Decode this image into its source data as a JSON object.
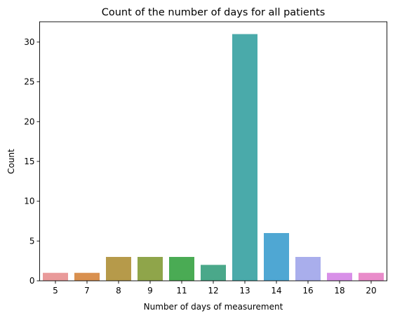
{
  "chart_data": {
    "type": "bar",
    "title": "Count of the number of days for all patients",
    "xlabel": "Number of days of measurement",
    "ylabel": "Count",
    "categories": [
      "5",
      "7",
      "8",
      "9",
      "11",
      "12",
      "13",
      "14",
      "16",
      "18",
      "20"
    ],
    "values": [
      1,
      1,
      3,
      3,
      3,
      2,
      31,
      6,
      3,
      1,
      1
    ],
    "colors": [
      "#e99a9a",
      "#d9904f",
      "#b69a4a",
      "#8fa54a",
      "#4aab54",
      "#4aa88a",
      "#4aaaaa",
      "#4fa7d3",
      "#a9aeec",
      "#d890e8",
      "#e98cca"
    ],
    "ylim": [
      0,
      32.55
    ],
    "yticks": [
      0,
      5,
      10,
      15,
      20,
      25,
      30
    ],
    "grid": false,
    "legend": "none"
  }
}
